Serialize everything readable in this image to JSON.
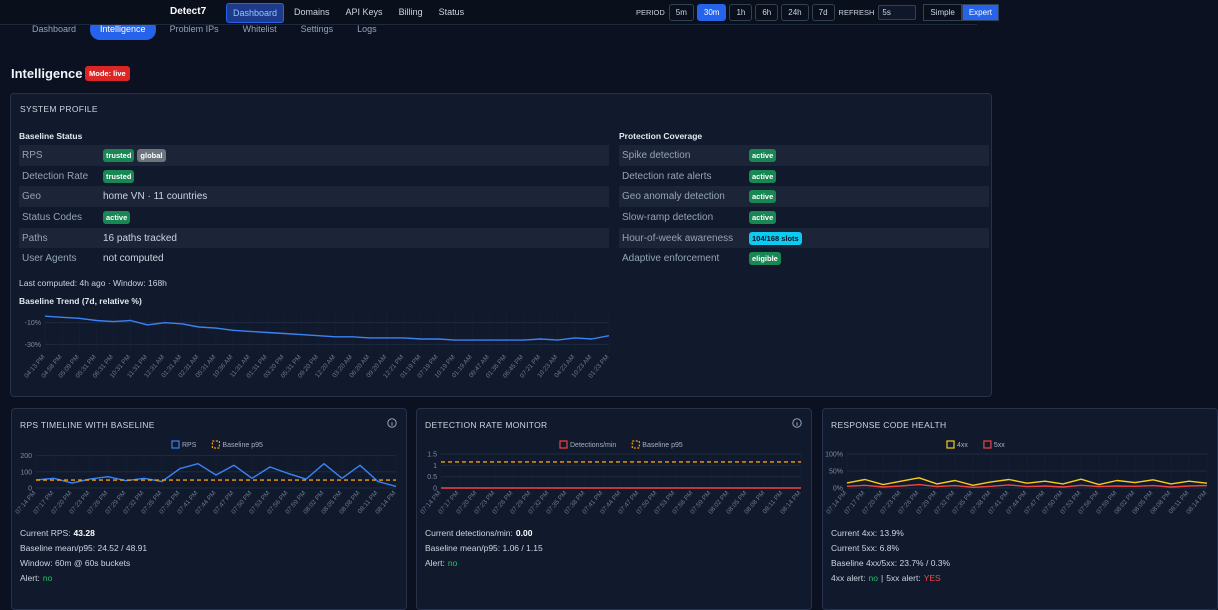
{
  "nav": {
    "brand": "Detect7",
    "links": [
      "Dashboard",
      "Domains",
      "API Keys",
      "Billing",
      "Status"
    ],
    "active_link": 0,
    "period_label": "PERIOD",
    "periods": [
      "5m",
      "30m",
      "1h",
      "6h",
      "24h",
      "7d"
    ],
    "active_period": 1,
    "refresh_label": "REFRESH",
    "refresh": "5s",
    "modes": [
      "Simple",
      "Expert"
    ],
    "active_mode": 1
  },
  "tabs": [
    "Dashboard",
    "Intelligence",
    "Problem IPs",
    "Whitelist",
    "Settings",
    "Logs"
  ],
  "active_tab": 1,
  "page": {
    "title": "Intelligence",
    "mode": "Mode: live"
  },
  "profile": {
    "title": "SYSTEM PROFILE",
    "baseline": {
      "title": "Baseline Status",
      "rows": [
        {
          "label": "RPS",
          "badges": [
            {
              "text": "trusted",
              "color": "#198754"
            },
            {
              "text": "global",
              "color": "#6c757d"
            }
          ]
        },
        {
          "label": "Detection Rate",
          "badges": [
            {
              "text": "trusted",
              "color": "#198754"
            }
          ]
        },
        {
          "label": "Geo",
          "value": "home VN · 11 countries"
        },
        {
          "label": "Status Codes",
          "badges": [
            {
              "text": "active",
              "color": "#198754"
            }
          ]
        },
        {
          "label": "Paths",
          "value": "16 paths tracked"
        },
        {
          "label": "User Agents",
          "value": "not computed"
        }
      ]
    },
    "coverage": {
      "title": "Protection Coverage",
      "rows": [
        {
          "label": "Spike detection",
          "badges": [
            {
              "text": "active",
              "color": "#198754"
            }
          ]
        },
        {
          "label": "Detection rate alerts",
          "badges": [
            {
              "text": "active",
              "color": "#198754"
            }
          ]
        },
        {
          "label": "Geo anomaly detection",
          "badges": [
            {
              "text": "active",
              "color": "#198754"
            }
          ]
        },
        {
          "label": "Slow-ramp detection",
          "badges": [
            {
              "text": "active",
              "color": "#198754"
            }
          ]
        },
        {
          "label": "Hour-of-week awareness",
          "badges": [
            {
              "text": "104/168 slots",
              "color": "#0dcaf0",
              "text_color": "#0b1120"
            }
          ]
        },
        {
          "label": "Adaptive enforcement",
          "badges": [
            {
              "text": "eligible",
              "color": "#198754"
            }
          ]
        }
      ]
    },
    "computed": "Last computed: 4h ago · Window: 168h"
  },
  "panels": [
    {
      "lines": [
        [
          {
            "text": "Current RPS:"
          },
          {
            "text": "43.28",
            "bold": true
          }
        ],
        [
          {
            "text": "Baseline mean/p95: 24.52 / 48.91"
          }
        ],
        [
          {
            "text": "Window: 60m @ 60s buckets"
          }
        ],
        [
          {
            "text": "Alert:"
          },
          {
            "text": "no",
            "color": "#22c55e"
          }
        ]
      ]
    },
    {
      "lines": [
        [
          {
            "text": "Current detections/min:"
          },
          {
            "text": "0.00",
            "bold": true
          }
        ],
        [
          {
            "text": "Baseline mean/p95: 1.06 / 1.15"
          }
        ],
        [
          {
            "text": "Alert:"
          },
          {
            "text": "no",
            "color": "#22c55e"
          }
        ]
      ]
    },
    {
      "lines": [
        [
          {
            "text": "Current 4xx: 13.9%"
          }
        ],
        [
          {
            "text": "Current 5xx: 6.8%"
          }
        ],
        [
          {
            "text": "Baseline 4xx/5xx: 23.7% / 0.3%"
          }
        ],
        [
          {
            "text": "4xx alert:"
          },
          {
            "text": "no",
            "color": "#22c55e"
          },
          {
            "text": "|"
          },
          {
            "text": "5xx alert:"
          },
          {
            "text": "YES",
            "color": "#ef4444"
          }
        ]
      ]
    }
  ],
  "chart_data": [
    {
      "type": "line",
      "title": "Baseline Trend (7d, relative %)",
      "categories": [
        "04:13 PM",
        "04:58 PM",
        "05:09 PM",
        "05:31 PM",
        "06:31 PM",
        "10:31 PM",
        "11:31 PM",
        "12:31 AM",
        "01:31 AM",
        "02:31 AM",
        "05:31 AM",
        "10:36 AM",
        "11:31 AM",
        "01:31 PM",
        "03:20 PM",
        "05:31 PM",
        "09:20 PM",
        "12:20 AM",
        "03:20 AM",
        "06:20 AM",
        "09:20 AM",
        "12:21 PM",
        "01:19 PM",
        "07:19 PM",
        "10:19 PM",
        "01:19 AM",
        "09:47 AM",
        "01:36 PM",
        "06:45 PM",
        "07:21 PM",
        "10:23 AM",
        "04:23 AM",
        "10:23 AM",
        "01:23 PM"
      ],
      "series": [
        {
          "name": "Baseline",
          "color": "#3b82f6",
          "values": [
            -4,
            -5,
            -6,
            -8,
            -9,
            -8,
            -12,
            -10,
            -11,
            -14,
            -15,
            -17,
            -18,
            -19,
            -20,
            -21,
            -22,
            -23,
            -23,
            -24,
            -24,
            -24,
            -25,
            -25,
            -26,
            -26,
            -26,
            -26,
            -26,
            -25,
            -26,
            -24,
            -25,
            -22
          ]
        }
      ],
      "ylim": [
        -37,
        -2
      ],
      "yticks": [
        {
          "value": -10,
          "label": "-10%"
        },
        {
          "value": -30,
          "label": "-30%"
        }
      ]
    },
    {
      "type": "line",
      "title": "RPS TIMELINE WITH BASELINE",
      "legend": "top",
      "categories": [
        "07:14 PM",
        "07:17 PM",
        "07:20 PM",
        "07:23 PM",
        "07:26 PM",
        "07:29 PM",
        "07:32 PM",
        "07:35 PM",
        "07:38 PM",
        "07:41 PM",
        "07:44 PM",
        "07:47 PM",
        "07:50 PM",
        "07:53 PM",
        "07:56 PM",
        "07:59 PM",
        "08:02 PM",
        "08:05 PM",
        "08:08 PM",
        "08:11 PM",
        "08:14 PM"
      ],
      "series": [
        {
          "name": "RPS",
          "color": "#3b82f6",
          "values": [
            50,
            60,
            30,
            55,
            70,
            45,
            60,
            40,
            120,
            150,
            80,
            140,
            60,
            130,
            90,
            55,
            150,
            60,
            140,
            40,
            10
          ]
        },
        {
          "name": "Baseline p95",
          "color": "#f59e0b",
          "dashed": true,
          "values": [
            48.91,
            48.91,
            48.91,
            48.91,
            48.91,
            48.91,
            48.91,
            48.91,
            48.91,
            48.91,
            48.91,
            48.91,
            48.91,
            48.91,
            48.91,
            48.91,
            48.91,
            48.91,
            48.91,
            48.91,
            48.91
          ]
        }
      ],
      "ylim": [
        0,
        210
      ],
      "yticks": [
        0,
        100,
        200
      ]
    },
    {
      "type": "line",
      "title": "DETECTION RATE MONITOR",
      "legend": "top",
      "categories": [
        "07:14 PM",
        "07:17 PM",
        "07:20 PM",
        "07:23 PM",
        "07:26 PM",
        "07:29 PM",
        "07:32 PM",
        "07:35 PM",
        "07:38 PM",
        "07:41 PM",
        "07:44 PM",
        "07:47 PM",
        "07:50 PM",
        "07:53 PM",
        "07:56 PM",
        "07:59 PM",
        "08:02 PM",
        "08:05 PM",
        "08:08 PM",
        "08:11 PM",
        "08:14 PM"
      ],
      "series": [
        {
          "name": "Detections/min",
          "color": "#ef4444",
          "values": [
            0,
            0,
            0,
            0,
            0,
            0,
            0,
            0,
            0,
            0,
            0,
            0,
            0,
            0,
            0,
            0,
            0,
            0,
            0,
            0,
            0
          ]
        },
        {
          "name": "Baseline p95",
          "color": "#f59e0b",
          "dashed": true,
          "values": [
            1.15,
            1.15,
            1.15,
            1.15,
            1.15,
            1.15,
            1.15,
            1.15,
            1.15,
            1.15,
            1.15,
            1.15,
            1.15,
            1.15,
            1.15,
            1.15,
            1.15,
            1.15,
            1.15,
            1.15,
            1.15
          ]
        }
      ],
      "ylim": [
        0,
        1.5
      ],
      "yticks": [
        0,
        0.5,
        1,
        1.5
      ]
    },
    {
      "type": "line",
      "title": "RESPONSE CODE HEALTH",
      "legend": "top",
      "categories": [
        "07:14 PM",
        "07:17 PM",
        "07:20 PM",
        "07:23 PM",
        "07:26 PM",
        "07:29 PM",
        "07:32 PM",
        "07:35 PM",
        "07:38 PM",
        "07:41 PM",
        "07:44 PM",
        "07:47 PM",
        "07:50 PM",
        "07:53 PM",
        "07:56 PM",
        "07:59 PM",
        "08:02 PM",
        "08:05 PM",
        "08:08 PM",
        "08:11 PM",
        "08:14 PM"
      ],
      "series": [
        {
          "name": "4xx",
          "color": "#facc15",
          "values": [
            15,
            25,
            10,
            20,
            30,
            12,
            22,
            8,
            18,
            25,
            14,
            20,
            12,
            26,
            10,
            22,
            16,
            24,
            12,
            20,
            14
          ]
        },
        {
          "name": "5xx",
          "color": "#ef4444",
          "values": [
            5,
            8,
            3,
            6,
            10,
            4,
            7,
            2,
            5,
            9,
            4,
            6,
            3,
            8,
            4,
            6,
            5,
            7,
            3,
            6,
            7
          ]
        }
      ],
      "ylim": [
        0,
        100
      ],
      "yticks": [
        {
          "value": 0,
          "label": "0%"
        },
        {
          "value": 50,
          "label": "50%"
        },
        {
          "value": 100,
          "label": "100%"
        }
      ]
    }
  ]
}
